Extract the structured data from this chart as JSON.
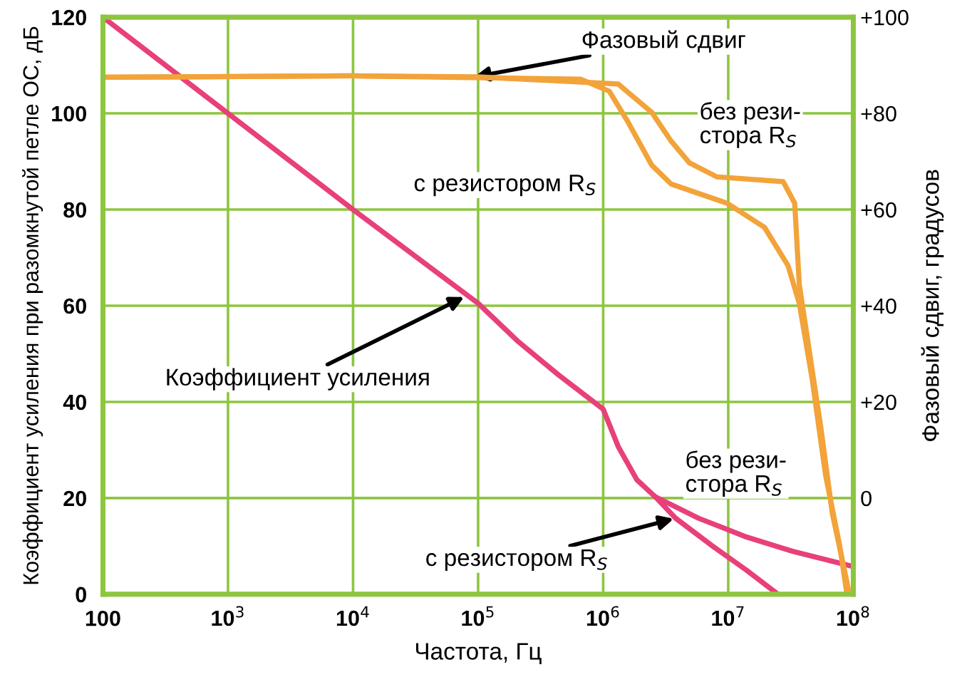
{
  "chart_data": {
    "type": "line",
    "xlabel": "Частота, Гц",
    "ylabel": "Коэффициент усиления при разомкнутой петле ОС, дБ",
    "y2label": "Фазовый сдвиг, градусов",
    "log": "x",
    "grid": true,
    "marker": "none",
    "line_style": "solid",
    "xlim": [
      100,
      100000000
    ],
    "xticks": [
      {
        "value": 100,
        "label": "100"
      },
      {
        "value": 1000,
        "label": "10$^{3}$"
      },
      {
        "value": 10000,
        "label": "10$^{4}$"
      },
      {
        "value": 100000,
        "label": "10$^{5}$"
      },
      {
        "value": 1000000,
        "label": "10$^{6}$"
      },
      {
        "value": 10000000,
        "label": "10$^{7}$"
      },
      {
        "value": 100000000,
        "label": "10$^{8}$"
      }
    ],
    "ylim": [
      0,
      120
    ],
    "yticks": [
      0,
      20,
      40,
      60,
      80,
      100,
      120
    ],
    "y2lim": [
      -20,
      100
    ],
    "y2ticks": [
      {
        "value": 0,
        "label": "0"
      },
      {
        "value": 20,
        "label": "+20"
      },
      {
        "value": 40,
        "label": "+40"
      },
      {
        "value": 60,
        "label": "+60"
      },
      {
        "value": 80,
        "label": "+80"
      },
      {
        "value": 100,
        "label": "+100"
      }
    ],
    "series": [
      {
        "color": "#e8407a",
        "x": [
          100,
          1000,
          10000,
          100000,
          210000,
          440000,
          1000000,
          1320000,
          1860000,
          2600000,
          5800000,
          14000000,
          33000000,
          95000000
        ],
        "values": [
          120,
          100,
          80,
          60.5,
          52.5,
          45.6,
          38.5,
          30.7,
          23.8,
          20.3,
          15.8,
          11.9,
          8.9,
          5.9
        ]
      },
      {
        "color": "#e8407a",
        "x": [
          2600000,
          3800000,
          7600000,
          14000000,
          25000000
        ],
        "values": [
          20.3,
          15.8,
          9.9,
          5,
          0
        ]
      },
      {
        "color": "#f2a33a",
        "axis": "y2",
        "x": [
          100,
          10000,
          100000,
          1320000,
          2450000,
          3500000,
          4900000,
          8100000,
          27500000,
          34000000,
          37000000,
          55000000,
          68000000,
          85000000,
          93000000
        ],
        "values": [
          87.5,
          87.8,
          87.6,
          86.1,
          80.2,
          74.2,
          69.7,
          66.8,
          65.8,
          61.3,
          44.4,
          14.7,
          -3.2,
          -15,
          -20
        ]
      },
      {
        "color": "#f2a33a",
        "axis": "y2",
        "x": [
          100,
          10000,
          660000,
          1120000,
          1580000,
          2450000,
          3500000,
          9800000,
          19500000,
          30000000,
          37000000,
          47000000,
          60000000,
          78000000,
          89000000
        ],
        "values": [
          87.5,
          87.8,
          87.1,
          84.6,
          78.2,
          69.2,
          65.3,
          61.3,
          56.3,
          48.4,
          40.5,
          24.6,
          4.8,
          -10,
          -20
        ]
      }
    ],
    "annotations": [
      {
        "text": "Фазовый сдвиг",
        "x": 90000,
        "y": 107.5
      },
      "без рези-\nстора R$_{S}$",
      "с резистором R$_{S}$",
      {
        "text": "Коэффициент усиления",
        "x": 80000,
        "y": 62
      },
      "без рези-\nстора R$_{S}$",
      {
        "text": "с резистором R$_{S}$",
        "x": 3800000,
        "y": 15.8
      }
    ]
  }
}
